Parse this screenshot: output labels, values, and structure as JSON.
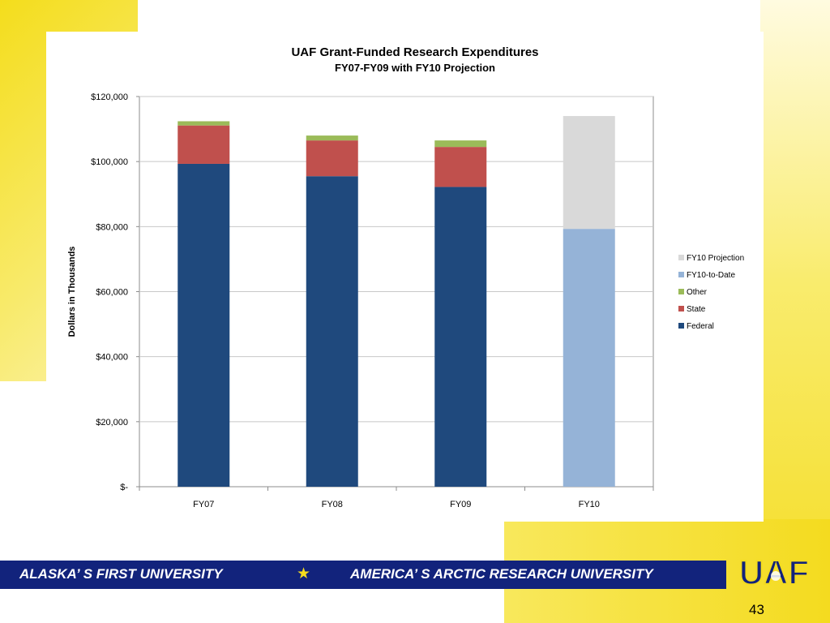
{
  "chart_data": {
    "type": "bar",
    "stacked": true,
    "title": "UAF Grant-Funded Research Expenditures",
    "subtitle": "FY07-FY09 with FY10 Projection",
    "xlabel": "",
    "ylabel": "Dollars in Thousands",
    "categories": [
      "FY07",
      "FY08",
      "FY09",
      "FY10"
    ],
    "ylim": [
      0,
      120000
    ],
    "yticks": [
      0,
      20000,
      40000,
      60000,
      80000,
      100000,
      120000
    ],
    "ytick_labels": [
      "$-",
      "$20,000",
      "$40,000",
      "$60,000",
      "$80,000",
      "$100,000",
      "$120,000"
    ],
    "grid": true,
    "legend_position": "right",
    "series": [
      {
        "name": "Federal",
        "color": "#1f497d",
        "values": [
          99300,
          95500,
          92200,
          0
        ]
      },
      {
        "name": "State",
        "color": "#c0504d",
        "values": [
          11800,
          11000,
          12300,
          0
        ]
      },
      {
        "name": "Other",
        "color": "#9bbb59",
        "values": [
          1300,
          1500,
          2000,
          0
        ]
      },
      {
        "name": "FY10-to-Date",
        "color": "#95b3d7",
        "values": [
          0,
          0,
          0,
          79300
        ]
      },
      {
        "name": "FY10 Projection",
        "color": "#d9d9d9",
        "values": [
          0,
          0,
          0,
          34700
        ]
      }
    ],
    "legend_order": [
      "FY10 Projection",
      "FY10-to-Date",
      "Other",
      "State",
      "Federal"
    ]
  },
  "footer": {
    "left": "ALASKA’ S FIRST UNIVERSITY",
    "star": "★",
    "right": "AMERICA’ S ARCTIC RESEARCH UNIVERSITY"
  },
  "logo": {
    "text": "UAF"
  },
  "page_number": "43"
}
